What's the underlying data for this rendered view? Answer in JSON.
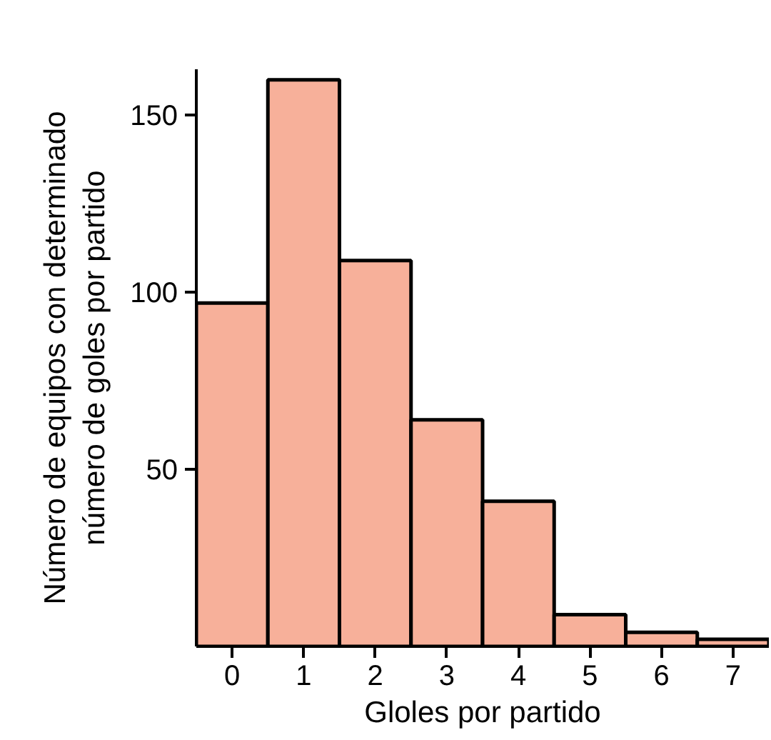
{
  "chart_data": {
    "type": "histogram",
    "xlabel": "Gloles por partido",
    "ylabel": "Número de equipos con determinado\nnúmero de goles por partido",
    "bins": [
      -0.5,
      0.5,
      1.5,
      2.5,
      3.5,
      4.5,
      5.5,
      6.5,
      7.5
    ],
    "values": [
      97,
      160,
      109,
      64,
      41,
      9,
      4,
      2
    ],
    "color": "#f7b09a",
    "xlim": [
      -0.5,
      7.5
    ],
    "xticks": [
      0,
      1,
      2,
      3,
      4,
      5,
      6,
      7
    ],
    "ylim": [
      0,
      163
    ],
    "yticks": [
      50,
      100,
      150
    ],
    "grid": false
  }
}
